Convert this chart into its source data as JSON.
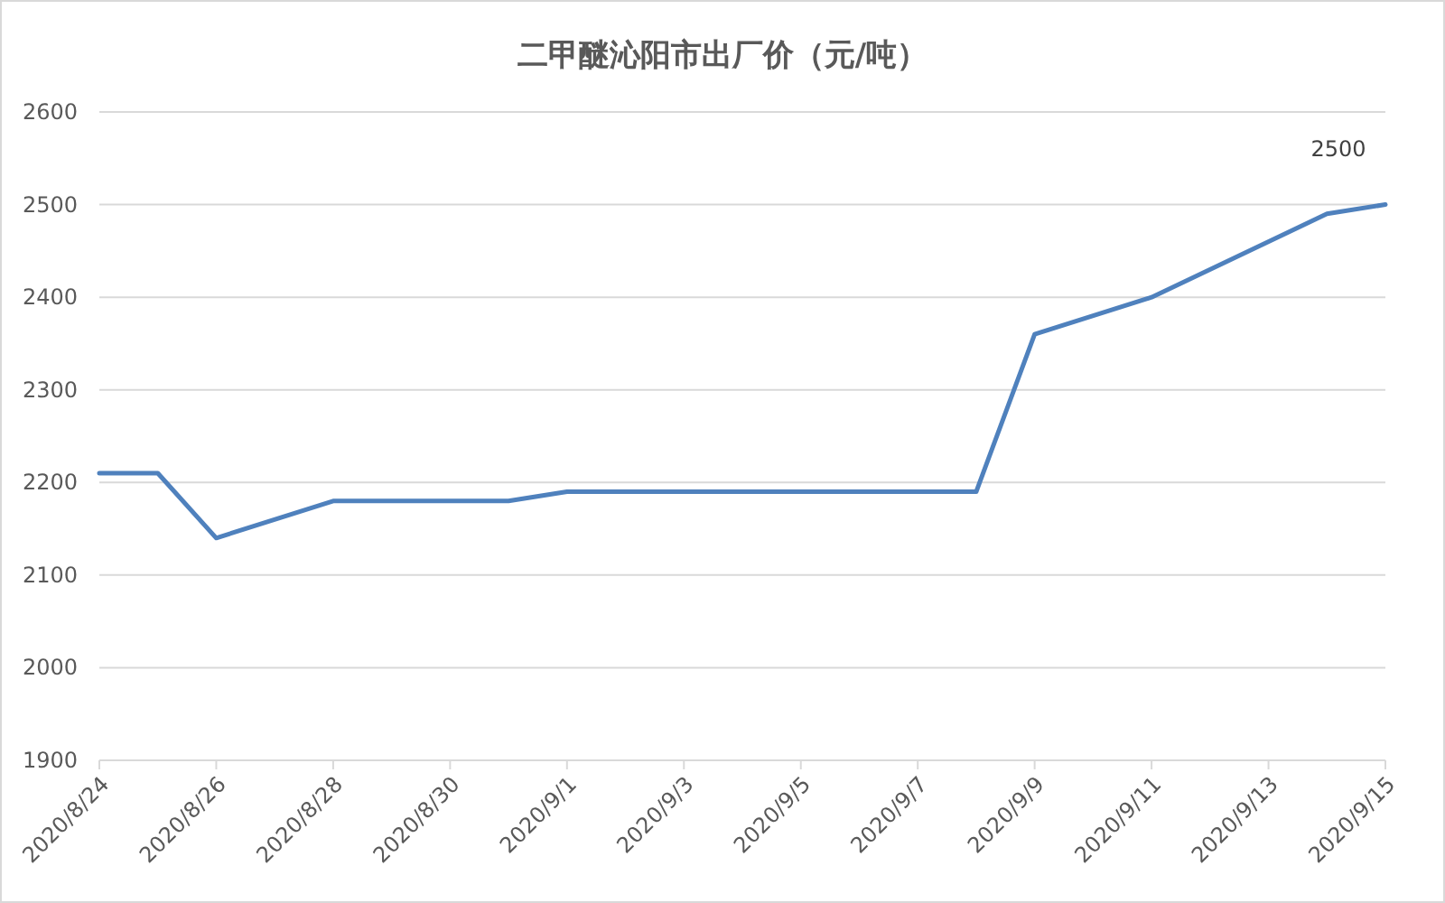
{
  "chart_data": {
    "type": "line",
    "title": "二甲醚沁阳市出厂价（元/吨）",
    "x": [
      "2020-08-24",
      "2020-08-25",
      "2020-08-26",
      "2020-08-28",
      "2020-08-31",
      "2020-09-01",
      "2020-09-08",
      "2020-09-09",
      "2020-09-11",
      "2020-09-14",
      "2020-09-15"
    ],
    "series": [
      {
        "color": "#4f81bd",
        "values": [
          2210,
          2210,
          2140,
          2180,
          2180,
          2190,
          2190,
          2360,
          2400,
          2490,
          2500
        ],
        "value_labels": [
          null,
          null,
          null,
          null,
          null,
          null,
          null,
          null,
          null,
          null,
          "2500"
        ]
      }
    ],
    "xlim": [
      "2020-08-24",
      "2020-09-15"
    ],
    "xticks": [
      {
        "value": "2020-08-24",
        "label": "2020/8/24"
      },
      {
        "value": "2020-08-26",
        "label": "2020/8/26"
      },
      {
        "value": "2020-08-28",
        "label": "2020/8/28"
      },
      {
        "value": "2020-08-30",
        "label": "2020/8/30"
      },
      {
        "value": "2020-09-01",
        "label": "2020/9/1"
      },
      {
        "value": "2020-09-03",
        "label": "2020/9/3"
      },
      {
        "value": "2020-09-05",
        "label": "2020/9/5"
      },
      {
        "value": "2020-09-07",
        "label": "2020/9/7"
      },
      {
        "value": "2020-09-09",
        "label": "2020/9/9"
      },
      {
        "value": "2020-09-11",
        "label": "2020/9/11"
      },
      {
        "value": "2020-09-13",
        "label": "2020/9/13"
      },
      {
        "value": "2020-09-15",
        "label": "2020/9/15"
      }
    ],
    "ylim": [
      1900,
      2600
    ],
    "yticks": [
      1900,
      2000,
      2100,
      2200,
      2300,
      2400,
      2500,
      2600
    ],
    "grid": "y"
  }
}
